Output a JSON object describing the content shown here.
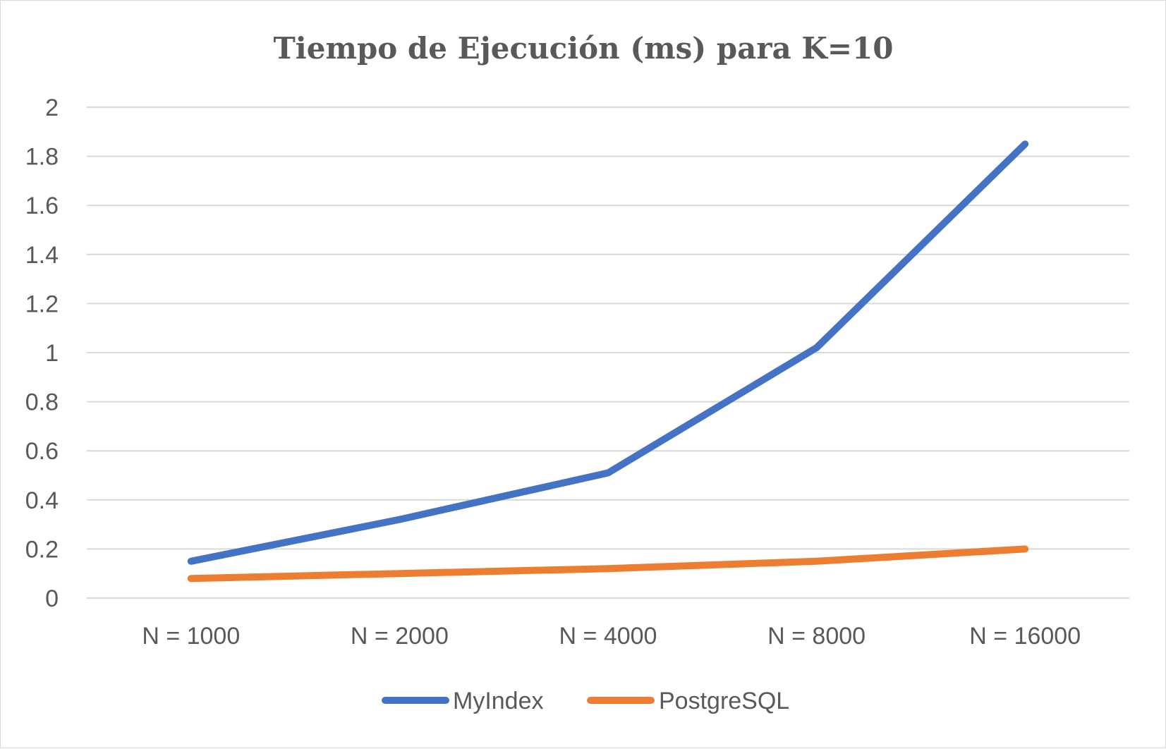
{
  "chart_data": {
    "type": "line",
    "title": "Tiempo de Ejecución (ms) para K=10",
    "xlabel": "",
    "ylabel": "",
    "categories": [
      "N = 1000",
      "N = 2000",
      "N = 4000",
      "N = 8000",
      "N = 16000"
    ],
    "ylim": [
      0,
      2
    ],
    "yticks": [
      "0",
      "0.2",
      "0.4",
      "0.6",
      "0.8",
      "1",
      "1.2",
      "1.4",
      "1.6",
      "1.8",
      "2"
    ],
    "grid": true,
    "legend_position": "bottom",
    "series": [
      {
        "name": "MyIndex",
        "color": "#4472C4",
        "values": [
          0.15,
          0.32,
          0.51,
          1.02,
          1.85
        ]
      },
      {
        "name": "PostgreSQL",
        "color": "#ED7D31",
        "values": [
          0.08,
          0.1,
          0.12,
          0.15,
          0.2
        ]
      }
    ]
  }
}
